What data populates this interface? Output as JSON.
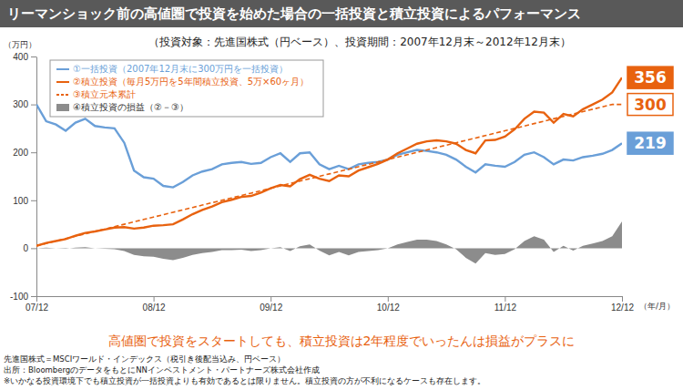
{
  "chart_data": {
    "type": "line",
    "title": "リーマンショック前の高値圏で投資を始めた場合の一括投資と積立投資によるパフォーマンス",
    "subtitle": "（投資対象：先進国株式（円ベース）、投資期間：2007年12月末～2012年12月末）",
    "y_label": "（万円）",
    "x_label": "（年/月）",
    "categories": [
      "07/12",
      null,
      null,
      null,
      null,
      null,
      null,
      null,
      null,
      null,
      null,
      null,
      "08/12",
      null,
      null,
      null,
      null,
      null,
      null,
      null,
      null,
      null,
      null,
      null,
      "09/12",
      null,
      null,
      null,
      null,
      null,
      null,
      null,
      null,
      null,
      null,
      null,
      "10/12",
      null,
      null,
      null,
      null,
      null,
      null,
      null,
      null,
      null,
      null,
      null,
      "11/12",
      null,
      null,
      null,
      null,
      null,
      null,
      null,
      null,
      null,
      null,
      null,
      "12/12"
    ],
    "series": [
      {
        "name": "①一括投資（2007年12月末に300万円を一括投資）",
        "type": "line",
        "line_style": "solid",
        "color": "#6a9fd8",
        "values": [
          300,
          265,
          258,
          245,
          262,
          270,
          255,
          252,
          250,
          220,
          162,
          148,
          145,
          130,
          127,
          138,
          152,
          160,
          165,
          175,
          178,
          180,
          176,
          178,
          190,
          198,
          180,
          198,
          200,
          175,
          165,
          172,
          165,
          175,
          178,
          180,
          185,
          195,
          200,
          205,
          203,
          200,
          195,
          185,
          170,
          158,
          175,
          172,
          170,
          180,
          195,
          200,
          190,
          175,
          185,
          183,
          190,
          193,
          197,
          205,
          219
        ]
      },
      {
        "name": "②積立投資（毎月5万円を5年間積立投資、5万×60ヶ月）",
        "type": "line",
        "line_style": "solid",
        "color": "#e8620f",
        "values": [
          5,
          11,
          15,
          19,
          26,
          32,
          35,
          39,
          43,
          44,
          41,
          43,
          47,
          48,
          50,
          60,
          71,
          80,
          87,
          96,
          101,
          107,
          109,
          116,
          125,
          132,
          129,
          144,
          153,
          145,
          140,
          152,
          150,
          162,
          169,
          176,
          185,
          198,
          208,
          218,
          223,
          225,
          223,
          218,
          205,
          198,
          225,
          226,
          233,
          248,
          270,
          285,
          283,
          262,
          280,
          275,
          290,
          300,
          310,
          325,
          356
        ]
      },
      {
        "name": "③積立元本累計",
        "type": "line",
        "line_style": "dashed",
        "color": "#e8620f",
        "values": [
          5,
          10,
          15,
          20,
          25,
          30,
          35,
          40,
          45,
          50,
          55,
          60,
          65,
          70,
          75,
          80,
          85,
          90,
          95,
          100,
          105,
          110,
          115,
          120,
          125,
          130,
          135,
          140,
          145,
          150,
          155,
          160,
          165,
          170,
          175,
          180,
          185,
          190,
          195,
          200,
          205,
          210,
          215,
          220,
          225,
          230,
          235,
          240,
          245,
          250,
          255,
          260,
          265,
          270,
          275,
          280,
          285,
          290,
          295,
          300,
          300
        ]
      },
      {
        "name": "④積立投資の損益（②－③）",
        "type": "area",
        "color": "#8c8c8c",
        "values": [
          0,
          1,
          0,
          -1,
          1,
          2,
          0,
          -1,
          -2,
          -6,
          -14,
          -17,
          -18,
          -22,
          -25,
          -20,
          -14,
          -10,
          -8,
          -4,
          -4,
          -3,
          -6,
          -4,
          0,
          2,
          -6,
          4,
          8,
          -5,
          -15,
          -8,
          -15,
          -8,
          -6,
          -4,
          0,
          8,
          13,
          18,
          18,
          15,
          8,
          -2,
          -20,
          -32,
          -10,
          -14,
          -12,
          -2,
          15,
          25,
          18,
          -8,
          5,
          -5,
          5,
          10,
          15,
          25,
          56
        ]
      }
    ],
    "ylim": [
      -100,
      400
    ],
    "yticks": [
      -100,
      0,
      100,
      200,
      300,
      400
    ],
    "grid": false,
    "legend": "top-left",
    "annotations": [
      {
        "text": "356",
        "y": 356,
        "color": "#e8620f",
        "style": "filled"
      },
      {
        "text": "300",
        "y": 300,
        "color": "#e8620f",
        "style": "outline"
      },
      {
        "text": "219",
        "y": 219,
        "color": "#6a9fd8",
        "style": "filled"
      }
    ],
    "caption": "高値圏で投資をスタートしても、積立投資は2年程度でいったんは損益がプラスに",
    "caption_color": "#e8620f",
    "footnotes": [
      "先進国株式＝MSCIワールド・インデックス（税引き後配当込み、円ベース）",
      "出所：BloombergのデータをもとにNNインベストメント・パートナーズ株式会社作成",
      "※いかなる投資環境下でも積立投資が一括投資よりも有効であるとは限りません。積立投資の方が不利になるケースも存在します。"
    ]
  }
}
